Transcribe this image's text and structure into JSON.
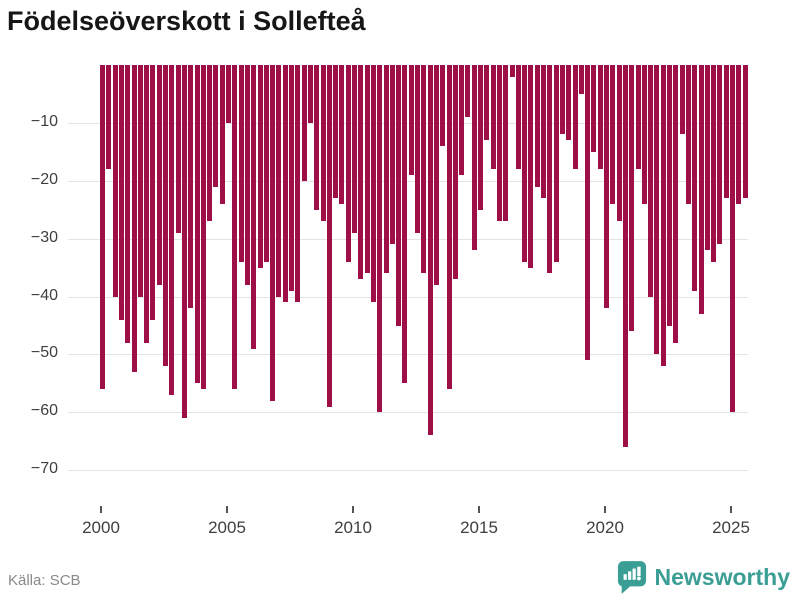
{
  "title": "Födelseöverskott i Sollefteå",
  "source": "Källa: SCB",
  "logo": {
    "text": "Newsworthy"
  },
  "colors": {
    "bar": "#9e0e47",
    "accent_teal": "#3a9e95",
    "grid": "#e3e3e3",
    "tick_text": "#3f3f3f",
    "source_text": "#8a8a8a"
  },
  "chart_data": {
    "type": "bar",
    "title": "Födelseöverskott i Sollefteå",
    "frequency": "quarterly",
    "start_period": "2000 Q1",
    "end_period": "2025 Q3",
    "xlabel": "",
    "ylabel": "",
    "ylim": [
      -70,
      0
    ],
    "grid": true,
    "x_tick_labels": [
      "2000",
      "2005",
      "2010",
      "2015",
      "2020",
      "2025"
    ],
    "y_tick_labels": [
      "−10",
      "−20",
      "−30",
      "−40",
      "−50",
      "−60",
      "−70"
    ],
    "y_tick_values": [
      -10,
      -20,
      -30,
      -40,
      -50,
      -60,
      -70
    ],
    "values": [
      -56,
      -18,
      -40,
      -44,
      -48,
      -53,
      -40,
      -48,
      -44,
      -38,
      -52,
      -57,
      -29,
      -61,
      -42,
      -55,
      -56,
      -27,
      -21,
      -24,
      -10,
      -56,
      -34,
      -38,
      -49,
      -35,
      -34,
      -58,
      -40,
      -41,
      -39,
      -41,
      -20,
      -10,
      -25,
      -27,
      -59,
      -23,
      -24,
      -34,
      -29,
      -37,
      -36,
      -41,
      -60,
      -36,
      -31,
      -45,
      -55,
      -19,
      -29,
      -36,
      -64,
      -38,
      -14,
      -56,
      -37,
      -19,
      -9,
      -32,
      -25,
      -13,
      -18,
      -27,
      -27,
      -2,
      -18,
      -34,
      -35,
      -21,
      -23,
      -36,
      -34,
      -12,
      -13,
      -18,
      -5,
      -51,
      -15,
      -18,
      -42,
      -24,
      -27,
      -66,
      -46,
      -18,
      -24,
      -40,
      -50,
      -52,
      -45,
      -48,
      -12,
      -24,
      -39,
      -43,
      -32,
      -34,
      -31,
      -23,
      -60,
      -24,
      -23
    ]
  }
}
